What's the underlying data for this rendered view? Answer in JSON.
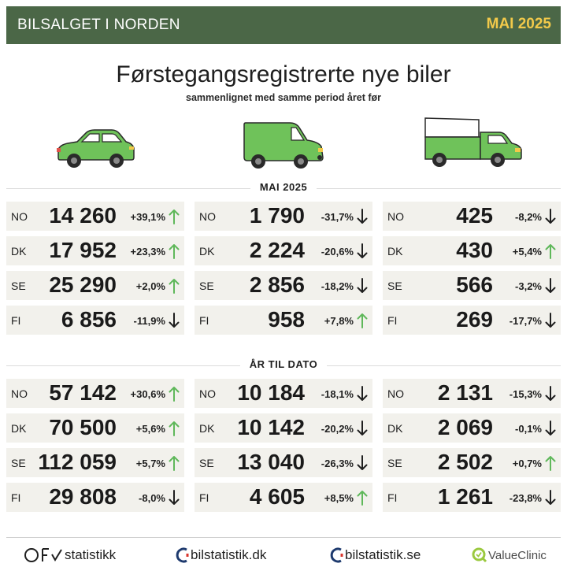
{
  "header": {
    "left_title": "BILSALGET I NORDEN",
    "right_title": "MAI 2025",
    "bar_color": "#4b6747",
    "accent_color": "#f2c94a"
  },
  "title": "Førstegangsregistrerte nye biler",
  "subtitle": "sammenlignet med samme period året før",
  "vehicles": [
    "car-icon",
    "van-icon",
    "truck-icon"
  ],
  "sections": [
    {
      "label": "MAI 2025",
      "columns": [
        [
          {
            "country": "NO",
            "value": "14 260",
            "change": "+39,1%",
            "direction": "up"
          },
          {
            "country": "DK",
            "value": "17 952",
            "change": "+23,3%",
            "direction": "up"
          },
          {
            "country": "SE",
            "value": "25 290",
            "change": "+2,0%",
            "direction": "up"
          },
          {
            "country": "FI",
            "value": "6 856",
            "change": "-11,9%",
            "direction": "down"
          }
        ],
        [
          {
            "country": "NO",
            "value": "1 790",
            "change": "-31,7%",
            "direction": "down"
          },
          {
            "country": "DK",
            "value": "2 224",
            "change": "-20,6%",
            "direction": "down"
          },
          {
            "country": "SE",
            "value": "2 856",
            "change": "-18,2%",
            "direction": "down"
          },
          {
            "country": "FI",
            "value": "958",
            "change": "+7,8%",
            "direction": "up"
          }
        ],
        [
          {
            "country": "NO",
            "value": "425",
            "change": "-8,2%",
            "direction": "down"
          },
          {
            "country": "DK",
            "value": "430",
            "change": "+5,4%",
            "direction": "up"
          },
          {
            "country": "SE",
            "value": "566",
            "change": "-3,2%",
            "direction": "down"
          },
          {
            "country": "FI",
            "value": "269",
            "change": "-17,7%",
            "direction": "down"
          }
        ]
      ]
    },
    {
      "label": "ÅR TIL DATO",
      "columns": [
        [
          {
            "country": "NO",
            "value": "57 142",
            "change": "+30,6%",
            "direction": "up"
          },
          {
            "country": "DK",
            "value": "70 500",
            "change": "+5,6%",
            "direction": "up"
          },
          {
            "country": "SE",
            "value": "112 059",
            "change": "+5,7%",
            "direction": "up"
          },
          {
            "country": "FI",
            "value": "29 808",
            "change": "-8,0%",
            "direction": "down"
          }
        ],
        [
          {
            "country": "NO",
            "value": "10 184",
            "change": "-18,1%",
            "direction": "down"
          },
          {
            "country": "DK",
            "value": "10 142",
            "change": "-20,2%",
            "direction": "down"
          },
          {
            "country": "SE",
            "value": "13 040",
            "change": "-26,3%",
            "direction": "down"
          },
          {
            "country": "FI",
            "value": "4 605",
            "change": "+8,5%",
            "direction": "up"
          }
        ],
        [
          {
            "country": "NO",
            "value": "2 131",
            "change": "-15,3%",
            "direction": "down"
          },
          {
            "country": "DK",
            "value": "2 069",
            "change": "-0,1%",
            "direction": "down"
          },
          {
            "country": "SE",
            "value": "2 502",
            "change": "+0,7%",
            "direction": "up"
          },
          {
            "country": "FI",
            "value": "1 261",
            "change": "-23,8%",
            "direction": "down"
          }
        ]
      ]
    }
  ],
  "colors": {
    "up": "#5fb85a",
    "down": "#1f1f1f",
    "cell_bg": "#f2f1ec",
    "vehicle_green": "#6fc25a"
  },
  "footer": {
    "logos": [
      {
        "name": "ofv-logo",
        "text": "statistikk"
      },
      {
        "name": "bilstatistik-dk-logo",
        "text": "bilstatistik.dk"
      },
      {
        "name": "bilstatistik-se-logo",
        "text": "bilstatistik.se"
      },
      {
        "name": "valueclinic-logo",
        "text": "ValueClinic"
      }
    ]
  }
}
